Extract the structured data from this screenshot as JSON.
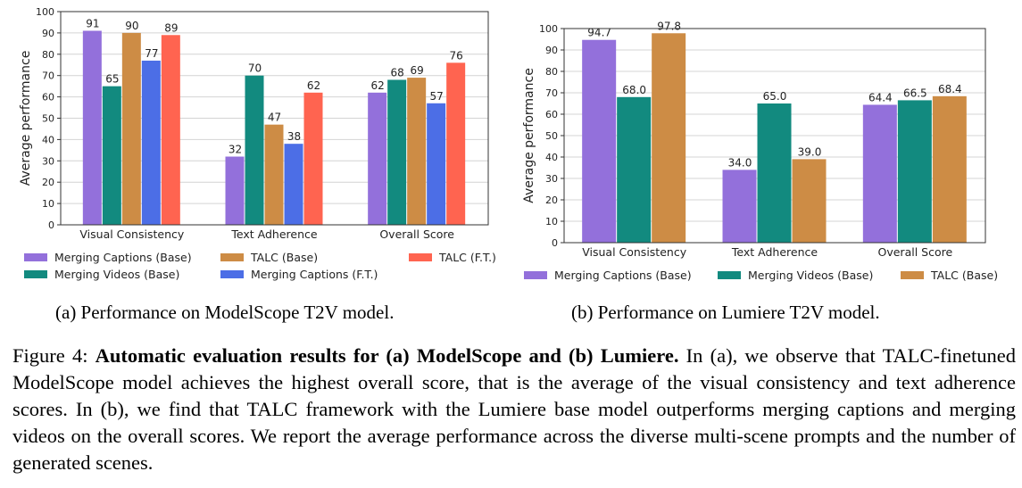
{
  "chart_data": [
    {
      "type": "bar",
      "categories": [
        "Visual Consistency",
        "Text Adherence",
        "Overall Score"
      ],
      "ylabel": "Average performance",
      "ylim": [
        0,
        100
      ],
      "yticks": [
        0,
        10,
        20,
        30,
        40,
        50,
        60,
        70,
        80,
        90,
        100
      ],
      "grid": true,
      "series": [
        {
          "name": "Merging Captions (Base)",
          "color": "#9370DB",
          "values": [
            91,
            32,
            62
          ]
        },
        {
          "name": "Merging Videos (Base)",
          "color": "#128A7F",
          "values": [
            65,
            70,
            68
          ]
        },
        {
          "name": "TALC (Base)",
          "color": "#CD8C45",
          "values": [
            90,
            47,
            69
          ]
        },
        {
          "name": "Merging Captions (F.T.)",
          "color": "#4C6EE6",
          "values": [
            77,
            38,
            57
          ]
        },
        {
          "name": "TALC (F.T.)",
          "color": "#FF6450",
          "values": [
            89,
            62,
            76
          ]
        }
      ],
      "value_labels": [
        [
          "91",
          "32",
          "62"
        ],
        [
          "65",
          "70",
          "68"
        ],
        [
          "90",
          "47",
          "69"
        ],
        [
          "77",
          "38",
          "57"
        ],
        [
          "89",
          "62",
          "76"
        ]
      ],
      "legend": "bottom"
    },
    {
      "type": "bar",
      "categories": [
        "Visual Consistency",
        "Text Adherence",
        "Overall Score"
      ],
      "ylabel": "Average performance",
      "ylim": [
        0,
        100
      ],
      "yticks": [
        0,
        10,
        20,
        30,
        40,
        50,
        60,
        70,
        80,
        90,
        100
      ],
      "grid": true,
      "series": [
        {
          "name": "Merging Captions (Base)",
          "color": "#9370DB",
          "values": [
            94.7,
            34.0,
            64.4
          ]
        },
        {
          "name": "Merging Videos (Base)",
          "color": "#128A7F",
          "values": [
            68.0,
            65.0,
            66.5
          ]
        },
        {
          "name": "TALC (Base)",
          "color": "#CD8C45",
          "values": [
            97.8,
            39.0,
            68.4
          ]
        }
      ],
      "value_labels": [
        [
          "94.7",
          "34.0",
          "64.4"
        ],
        [
          "68.0",
          "65.0",
          "66.5"
        ],
        [
          "97.8",
          "39.0",
          "68.4"
        ]
      ],
      "legend": "bottom"
    }
  ],
  "captions": {
    "a": "(a) Performance on ModelScope T2V model.",
    "b": "(b) Performance on Lumiere T2V model."
  },
  "figure_caption": {
    "prefix": "Figure 4: ",
    "bold": "Automatic evaluation results for (a) ModelScope and (b) Lumiere.",
    "rest": " In (a), we observe that TALC-finetuned ModelScope model achieves the highest overall score, that is the average of the visual consistency and text adherence scores. In (b), we find that TALC framework with the Lumiere base model outperforms merging captions and merging videos on the overall scores. We report the average performance across the diverse multi-scene prompts and the number of generated scenes."
  }
}
